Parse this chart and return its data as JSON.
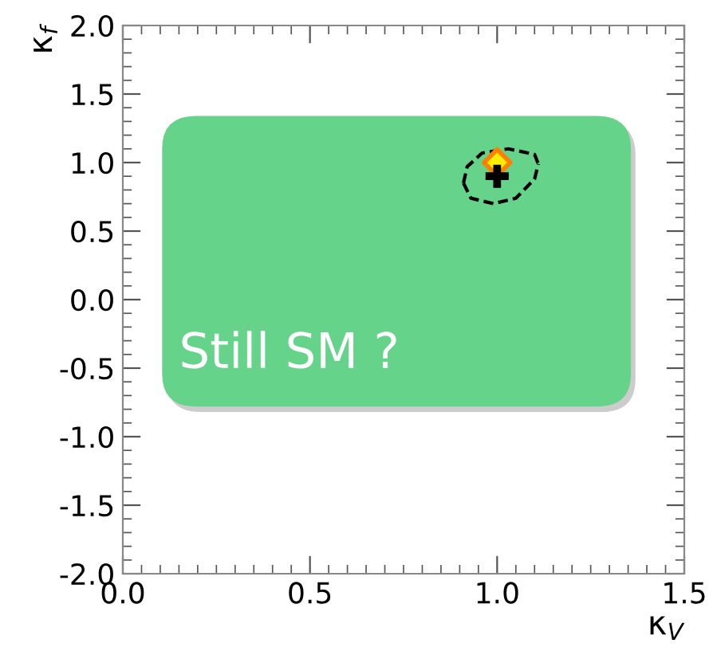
{
  "chart_data": {
    "type": "scatter",
    "xlabel": "κ$_{V}$",
    "ylabel": "κ$_{f}$",
    "xlim": [
      0.0,
      1.5
    ],
    "xticks": [
      {
        "value": 0.0,
        "label": "0.0"
      },
      0.5,
      {
        "value": 1.0,
        "label": "1.0"
      },
      1.5
    ],
    "ylim": [
      -2.0,
      2.0
    ],
    "yticks": [
      {
        "value": -2.0,
        "label": "-2.0"
      },
      -1.5,
      {
        "value": -1.0,
        "label": "-1.0"
      },
      -0.5,
      {
        "value": 0.0,
        "label": "0.0"
      },
      0.5,
      {
        "value": 1.0,
        "label": "1.0"
      },
      1.5,
      {
        "value": 2.0,
        "label": "2.0"
      }
    ],
    "grid": false,
    "legend": false,
    "annotations": [
      "Still SM ?"
    ],
    "series": [
      {
        "type": "line",
        "color": "#000000",
        "line_style": "dashed",
        "marker": "none",
        "x": [
          0.91,
          0.92,
          0.96,
          1.03,
          1.1,
          1.11
        ],
        "values": [
          0.85,
          0.97,
          1.07,
          1.1,
          1.06,
          0.99
        ]
      },
      {
        "type": "line",
        "color": "#000000",
        "line_style": "dashed",
        "marker": "none",
        "x": [
          0.91,
          0.93,
          0.99,
          1.05,
          1.1,
          1.11
        ],
        "values": [
          0.85,
          0.74,
          0.7,
          0.74,
          0.88,
          0.99
        ]
      },
      {
        "color": "#ff7f00",
        "marker": "diamond",
        "x": [
          1.0
        ],
        "values": [
          1.0
        ]
      },
      {
        "color": "#000000",
        "marker": "cross",
        "x": [
          1.0
        ],
        "values": [
          0.9
        ]
      }
    ]
  }
}
